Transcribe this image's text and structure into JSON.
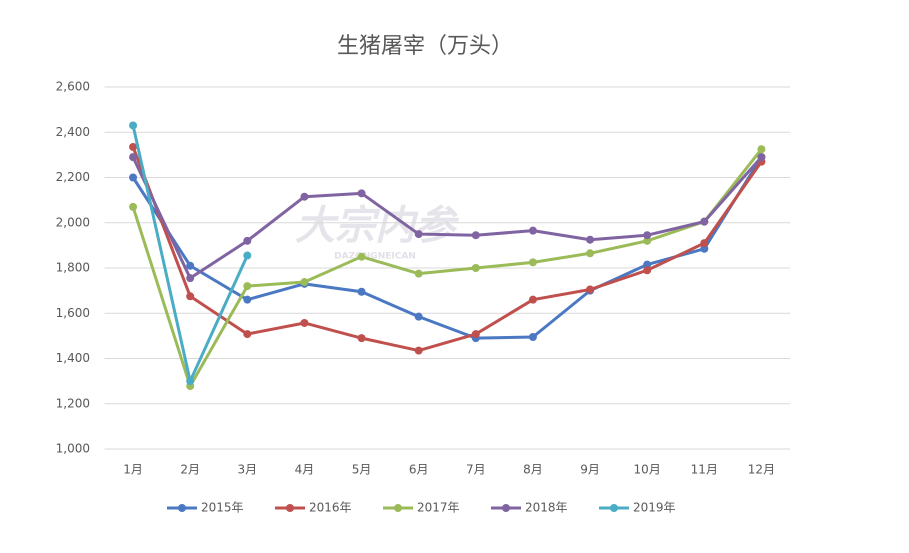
{
  "chart_data": {
    "type": "line",
    "title": "生猪屠宰（万头）",
    "watermark": "大宗内参",
    "watermark_sub": "DAZONGNEICAN",
    "categories": [
      "1月",
      "2月",
      "3月",
      "4月",
      "5月",
      "6月",
      "7月",
      "8月",
      "9月",
      "10月",
      "11月",
      "12月"
    ],
    "series": [
      {
        "name": "2015年",
        "color": "#4a78c2",
        "values": [
          2200,
          1810,
          1660,
          1730,
          1695,
          1585,
          1490,
          1495,
          1700,
          1815,
          1885,
          2290
        ]
      },
      {
        "name": "2016年",
        "color": "#c0504d",
        "values": [
          2335,
          1675,
          1508,
          1557,
          1490,
          1435,
          1508,
          1660,
          1705,
          1790,
          1910,
          2270
        ]
      },
      {
        "name": "2017年",
        "color": "#9bbb59",
        "values": [
          2070,
          1278,
          1720,
          1738,
          1850,
          1775,
          1800,
          1825,
          1865,
          1920,
          2005,
          2325
        ]
      },
      {
        "name": "2018年",
        "color": "#8064a2",
        "values": [
          2290,
          1755,
          1920,
          2115,
          2130,
          1950,
          1945,
          1965,
          1925,
          1945,
          2005,
          2290
        ]
      },
      {
        "name": "2019年",
        "color": "#4bacc6",
        "values": [
          2430,
          1300,
          1855,
          null,
          null,
          null,
          null,
          null,
          null,
          null,
          null,
          null
        ]
      }
    ],
    "ylim": [
      1000,
      2600
    ],
    "yticks": [
      {
        "value": 1000,
        "label": "1,000"
      },
      {
        "value": 1200,
        "label": "1,200"
      },
      {
        "value": 1400,
        "label": "1,400"
      },
      {
        "value": 1600,
        "label": "1,600"
      },
      {
        "value": 1800,
        "label": "1,800"
      },
      {
        "value": 2000,
        "label": "2,000"
      },
      {
        "value": 2200,
        "label": "2,200"
      },
      {
        "value": 2400,
        "label": "2,400"
      },
      {
        "value": 2600,
        "label": "2,600"
      }
    ],
    "grid": true,
    "legend": "bottom"
  }
}
